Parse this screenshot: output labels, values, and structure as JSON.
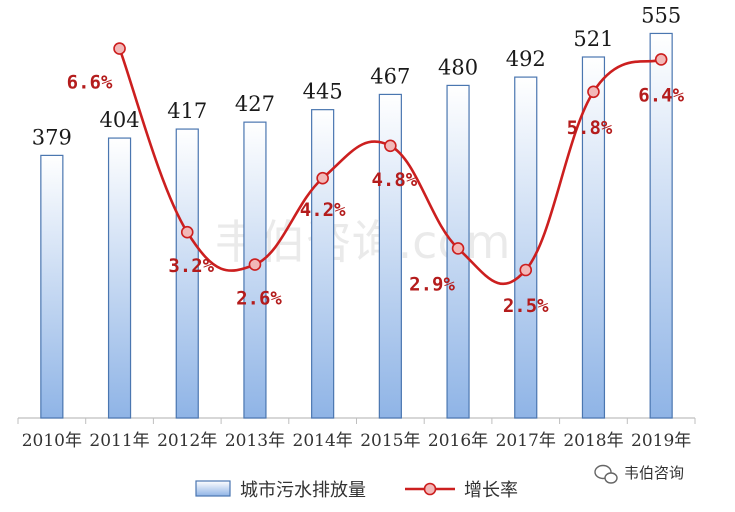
{
  "chart_data": {
    "type": "bar",
    "categories": [
      "2010年",
      "2011年",
      "2012年",
      "2013年",
      "2014年",
      "2015年",
      "2016年",
      "2017年",
      "2018年",
      "2019年"
    ],
    "series": [
      {
        "name": "城市污水排放量",
        "type": "bar",
        "values": [
          379,
          404,
          417,
          427,
          445,
          467,
          480,
          492,
          521,
          555
        ]
      },
      {
        "name": "增长率",
        "type": "line",
        "values": [
          null,
          6.6,
          3.2,
          2.6,
          4.2,
          4.8,
          2.9,
          2.5,
          5.8,
          6.4
        ],
        "labels": [
          "",
          "6.6%",
          "3.2%",
          "2.6%",
          "4.2%",
          "4.8%",
          "2.9%",
          "2.5%",
          "5.8%",
          "6.4%"
        ]
      }
    ],
    "title": "",
    "xlabel": "",
    "ylabel": "",
    "grid": false,
    "legend_position": "bottom",
    "colors": {
      "bar_fill_top": "#ffffff",
      "bar_fill_bottom": "#8fb4e6",
      "bar_stroke": "#4a76b0",
      "line": "#cc1f1f",
      "marker_fill": "#f2b8b8",
      "rate_label": "#b41c1c"
    }
  },
  "watermark": "韦伯咨询.com",
  "brand": {
    "name": "韦伯咨询",
    "icon": "wechat-icon"
  }
}
